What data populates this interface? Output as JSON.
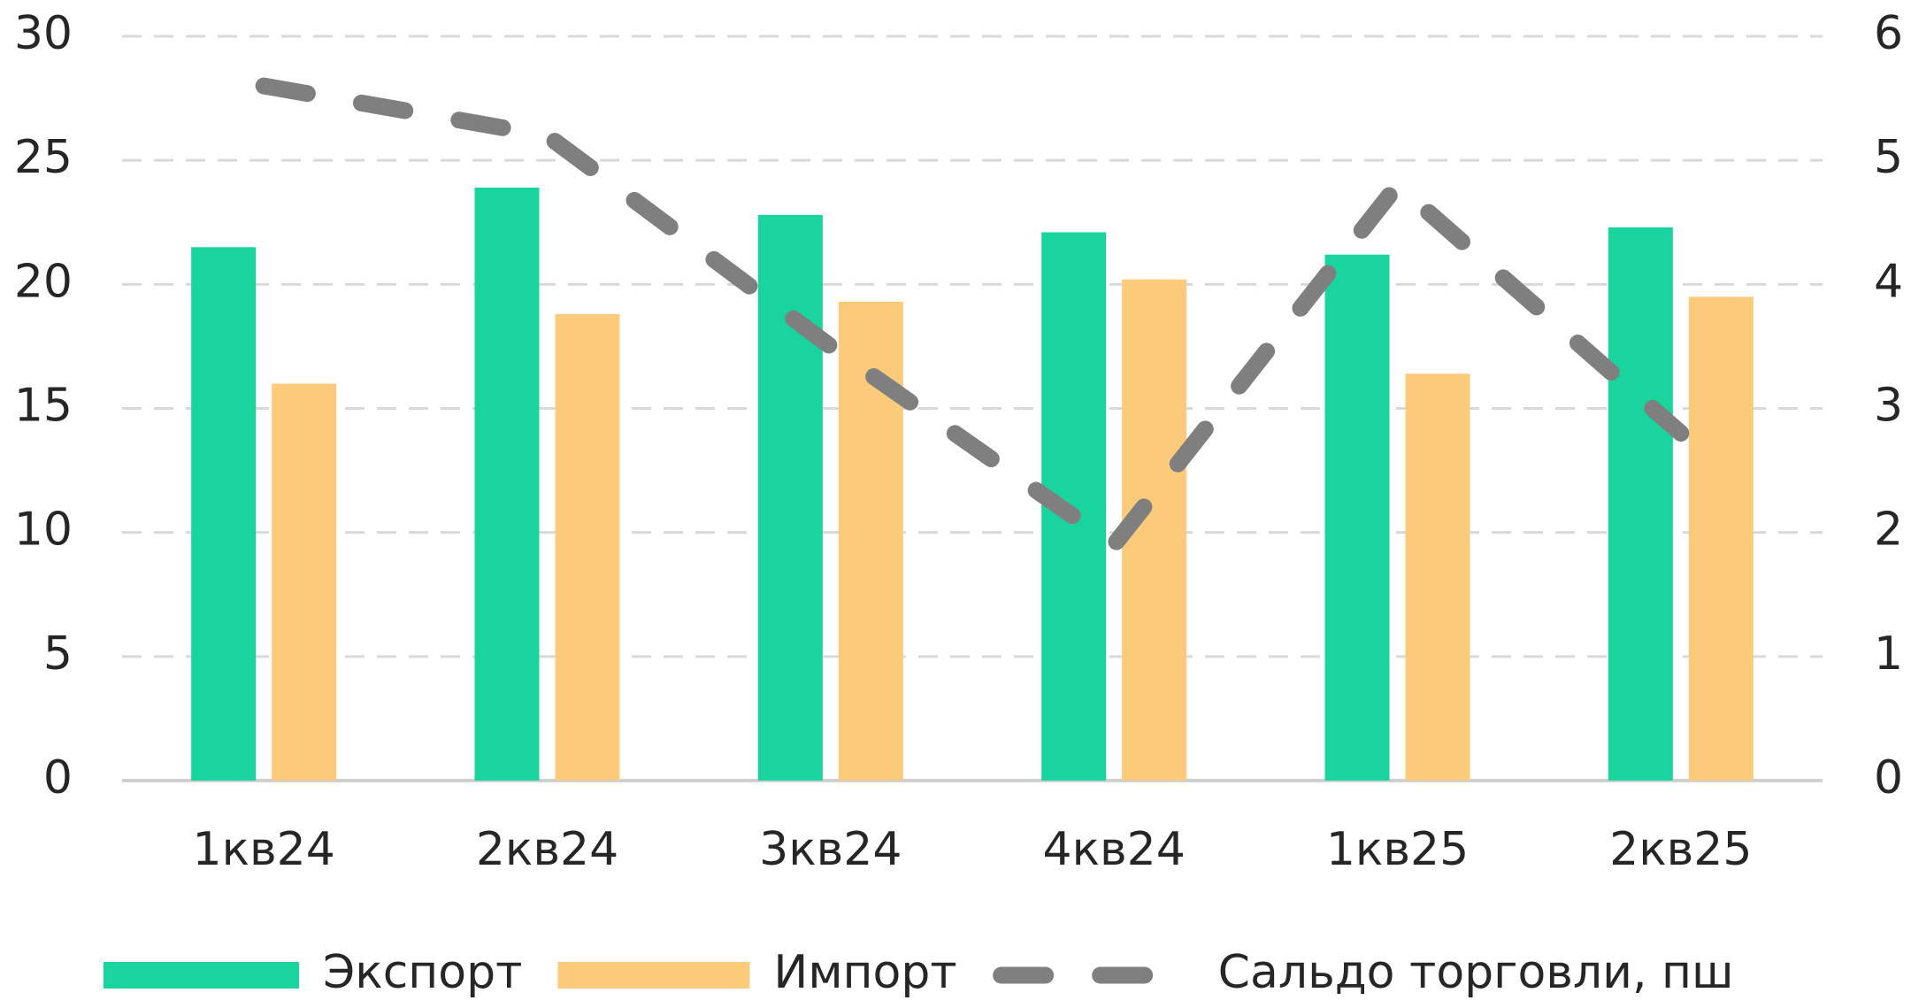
{
  "chart_data": {
    "type": "bar",
    "categories": [
      "1кв24",
      "2кв24",
      "3кв24",
      "4кв24",
      "1кв25",
      "2кв25"
    ],
    "series": [
      {
        "name": "Экспорт",
        "color": "#19d49f",
        "values": [
          21.5,
          23.9,
          22.8,
          22.1,
          21.2,
          22.3
        ]
      },
      {
        "name": "Импорт",
        "color": "#fbcb7b",
        "values": [
          16.0,
          18.8,
          19.3,
          20.2,
          16.4,
          19.5
        ]
      },
      {
        "name": "Сальдо торговли, пш",
        "color": "#7f7f7f",
        "type": "line",
        "style": "dashed",
        "axis": "y2",
        "values": [
          5.6,
          5.2,
          3.5,
          1.9,
          4.8,
          2.8
        ]
      }
    ],
    "ylim": [
      0,
      30
    ],
    "yticks": [
      0,
      5,
      10,
      15,
      20,
      25,
      30
    ],
    "y2lim": [
      0,
      6
    ],
    "y2ticks": [
      0,
      1,
      2,
      3,
      4,
      5,
      6
    ],
    "grid": true,
    "legend": "bottom"
  }
}
